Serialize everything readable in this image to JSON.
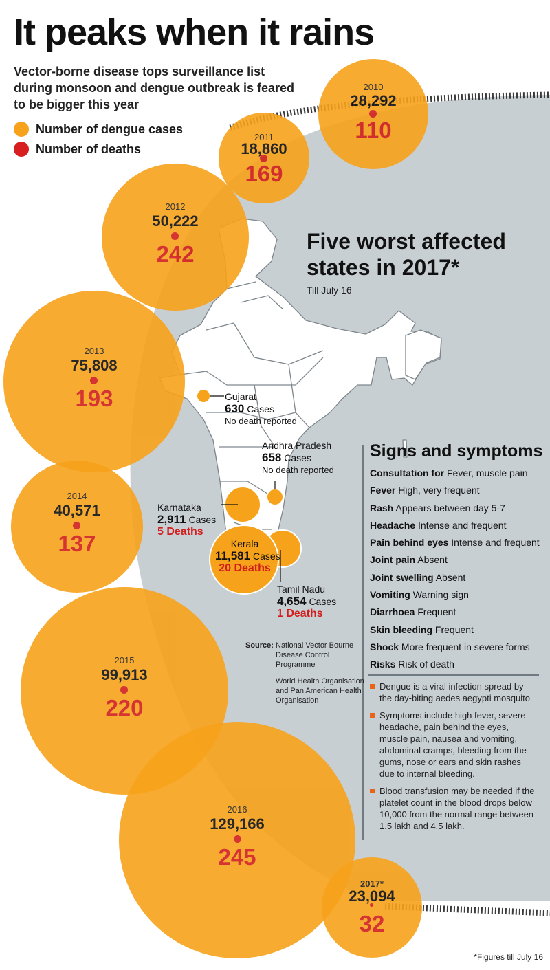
{
  "header": {
    "title": "It peaks when it rains",
    "subtitle": "Vector-borne disease tops surveillance list during monsoon and dengue outbreak is feared to be bigger this year"
  },
  "legend": [
    {
      "label": "Number of dengue cases",
      "color": "#f7a21b"
    },
    {
      "label": "Number of deaths",
      "color": "#d71f1f"
    }
  ],
  "colors": {
    "bubble": "#f7a21b",
    "deaths": "#d21d1d",
    "panel": "#c8cfd3",
    "map_land": "#ffffff",
    "map_border": "#7d868c",
    "dotted_border": "#3a3a3a"
  },
  "chart_data": {
    "type": "bubble",
    "categories": [
      "2010",
      "2011",
      "2012",
      "2013",
      "2014",
      "2015",
      "2016",
      "2017*"
    ],
    "series": [
      {
        "name": "Number of dengue cases",
        "values": [
          28292,
          18860,
          50222,
          75808,
          40571,
          99913,
          129166,
          23094
        ]
      },
      {
        "name": "Number of deaths",
        "values": [
          110,
          169,
          242,
          193,
          137,
          220,
          245,
          32
        ]
      }
    ],
    "bubbles": [
      {
        "year": "2010",
        "cases_label": "28,292",
        "deaths_label": "110"
      },
      {
        "year": "2011",
        "cases_label": "18,860",
        "deaths_label": "169"
      },
      {
        "year": "2012",
        "cases_label": "50,222",
        "deaths_label": "242"
      },
      {
        "year": "2013",
        "cases_label": "75,808",
        "deaths_label": "193"
      },
      {
        "year": "2014",
        "cases_label": "40,571",
        "deaths_label": "137"
      },
      {
        "year": "2015",
        "cases_label": "99,913",
        "deaths_label": "220"
      },
      {
        "year": "2016",
        "cases_label": "129,166",
        "deaths_label": "245"
      },
      {
        "year": "2017*",
        "cases_label": "23,094",
        "deaths_label": "32"
      }
    ]
  },
  "map": {
    "title": "Five worst affected states in 2017*",
    "subtitle": "Till July 16",
    "states": [
      {
        "name": "Gujarat",
        "cases": "630",
        "unit": "Cases",
        "deaths": "No death reported"
      },
      {
        "name": "Andhra Pradesh",
        "cases": "658",
        "unit": "Cases",
        "deaths": "No death reported"
      },
      {
        "name": "Karnataka",
        "cases": "2,911",
        "unit": "Cases",
        "deaths": "5 Deaths"
      },
      {
        "name": "Kerala",
        "cases": "11,581",
        "unit": "Cases",
        "deaths": "20 Deaths"
      },
      {
        "name": "Tamil Nadu",
        "cases": "4,654",
        "unit": "Cases",
        "deaths": "1 Deaths"
      }
    ]
  },
  "symptoms": {
    "title": "Signs and symptoms",
    "items": [
      {
        "name": "Consultation for",
        "value": "Fever, muscle pain"
      },
      {
        "name": "Fever",
        "value": "High, very frequent"
      },
      {
        "name": "Rash",
        "value": "Appears between day 5-7"
      },
      {
        "name": "Headache",
        "value": "Intense and frequent"
      },
      {
        "name": "Pain behind eyes",
        "value": "Intense and frequent"
      },
      {
        "name": "Joint pain",
        "value": "Absent"
      },
      {
        "name": "Joint swelling",
        "value": "Absent"
      },
      {
        "name": "Vomiting",
        "value": "Warning sign"
      },
      {
        "name": "Diarrhoea",
        "value": "Frequent"
      },
      {
        "name": "Skin bleeding",
        "value": "Frequent"
      },
      {
        "name": "Shock",
        "value": "More frequent in severe forms"
      },
      {
        "name": "Risks",
        "value": "Risk of death"
      }
    ]
  },
  "facts": [
    "Dengue is a viral infection spread by the day-biting aedes aegypti mosquito",
    "Symptoms include high fever, severe headache, pain behind the eyes, muscle pain, nausea and vomiting, abdominal cramps, bleeding from the gums, nose or ears and skin rashes due to internal bleeding.",
    "Blood transfusion may be needed if the platelet count in the blood drops below 10,000 from the normal range between 1.5 lakh and 4.5 lakh."
  ],
  "source": {
    "label": "Source:",
    "items": [
      "National Vector Bourne Disease Control Programme",
      "World Health Organisation and Pan American Health Organisation"
    ]
  },
  "footnote": "*Figures till July 16"
}
